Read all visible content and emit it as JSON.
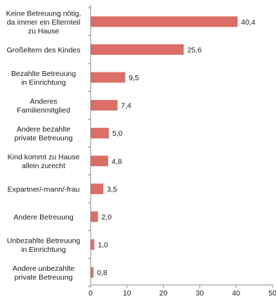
{
  "chart_data": {
    "type": "bar",
    "orientation": "horizontal",
    "categories": [
      "Keine Betreuung nötig, da immer ein Elternteil zu Hause",
      "Großeltern des Kindes",
      "Bezahlte Betreuung in Einrichtung",
      "Anderes Familienmitglied",
      "Andere bezahlte private Betreuung",
      "Kind kommt zu Hause allein zurecht",
      "Expartner/-mann/-frau",
      "Andere Betreuung",
      "Unbezahlte Betreuung in Einrichtung",
      "Andere unbezahlte private Betreuung"
    ],
    "category_lines": [
      [
        "Keine Betreuung nötig,",
        "da immer ein Elternteil",
        "zu Hause"
      ],
      [
        "Großeltern des Kindes"
      ],
      [
        "Bezahlte Betreuung",
        "in Einrichtung"
      ],
      [
        "Anderes",
        "Familienmitglied"
      ],
      [
        "Andere bezahlte",
        "private Betreuung"
      ],
      [
        "Kind kommt zu Hause",
        "allein zurecht"
      ],
      [
        "Expartner/-mann/-frau"
      ],
      [
        "Andere Betreuung"
      ],
      [
        "Unbezahlte Betreuung",
        "in Einrichtung"
      ],
      [
        "Andere unbezahlte",
        "private Betreuung"
      ]
    ],
    "values": [
      40.4,
      25.6,
      9.5,
      7.4,
      5.0,
      4.8,
      3.5,
      2.0,
      1.0,
      0.8
    ],
    "value_labels": [
      "40,4",
      "25,6",
      "9,5",
      "7,4",
      "5,0",
      "4,8",
      "3,5",
      "2,0",
      "1,0",
      "0,8"
    ],
    "xlim": [
      0,
      50
    ],
    "xticks": [
      0,
      10,
      20,
      30,
      40,
      50
    ],
    "xtick_labels": [
      "0",
      "10",
      "20",
      "30",
      "40",
      "50"
    ],
    "title": "",
    "xlabel": "",
    "ylabel": "",
    "grid": false,
    "bar_color": "#db6e66",
    "axis_color": "#8c8c8c"
  }
}
